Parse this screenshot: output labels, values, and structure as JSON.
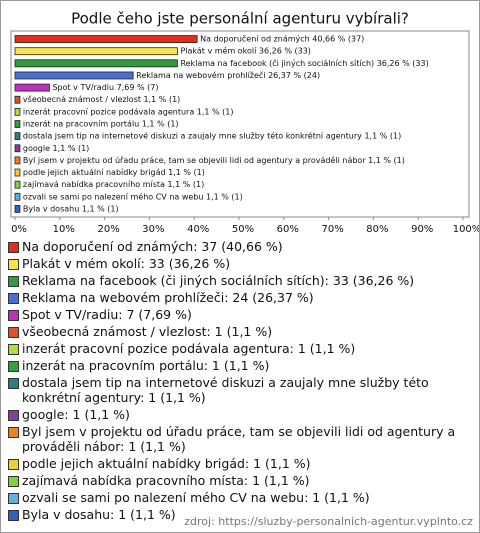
{
  "chart_data": {
    "type": "bar",
    "orientation": "horizontal",
    "title": "Podle čeho jste personální agenturu vybírali?",
    "categories": [
      "Na doporučení od známých",
      "Plakát v mém okolí",
      "Reklama na facebook (či jiných sociálních sítích)",
      "Reklama na webovém prohlížeči",
      "Spot v TV/radiu",
      "všeobecná známost / vlezlost",
      "inzerát pracovní pozice podávala agentura",
      "inzerát na pracovním portálu",
      "dostala jsem tip na internetové diskuzi a zaujaly mne služby této konkrétní agentury",
      "google",
      "Byl jsem v projektu od úřadu práce, tam se objevili lidi od agentury a prováděli nábor",
      "podle jejich aktuální nabídky brigád",
      "zajímavá nabídka pracovního místa",
      "ozvali se sami po nalezení mého CV na webu",
      "Byla v dosahu"
    ],
    "values": [
      40.66,
      36.26,
      36.26,
      26.37,
      7.69,
      1.1,
      1.1,
      1.1,
      1.1,
      1.1,
      1.1,
      1.1,
      1.1,
      1.1,
      1.1
    ],
    "value_labels": [
      "Na doporučení od známých 40,66 % (37)",
      "Plakát v mém okolí 36,26 % (33)",
      "Reklama na facebook (či jiných sociálních sítích) 36,26 % (33)",
      "Reklama na webovém prohlížeči 26,37 % (24)",
      "Spot v TV/radiu 7,69 % (7)",
      "všeobecná známost / vlezlost 1,1 % (1)",
      "inzerát pracovní pozice podávala agentura 1,1 % (1)",
      "inzerát na pracovním portálu 1,1 % (1)",
      "dostala jsem tip na internetové diskuzi a zaujaly mne služby této konkrétní agentury 1,1 % (1)",
      "google 1,1 % (1)",
      "Byl jsem v projektu od úřadu práce, tam se objevili lidi od agentury a prováděli nábor 1,1 % (1)",
      "podle jejich aktuální nabídky brigád 1,1 % (1)",
      "zajímavá nabídka pracovního místa 1,1 % (1)",
      "ozvali se sami po nalezení mého CV na webu 1,1 % (1)",
      "Byla v dosahu 1,1 % (1)"
    ],
    "legend_labels": [
      "Na doporučení od známých: 37 (40,66 %)",
      "Plakát v mém okolí: 33 (36,26 %)",
      "Reklama na facebook (či jiných sociálních sítích): 33 (36,26 %)",
      "Reklama na webovém prohlížeči: 24 (26,37 %)",
      "Spot v TV/radiu: 7 (7,69 %)",
      "všeobecná známost / vlezlost: 1 (1,1 %)",
      "inzerát pracovní pozice podávala agentura: 1 (1,1 %)",
      "inzerát na pracovním portálu: 1 (1,1 %)",
      "dostala jsem tip na internetové diskuzi a zaujaly mne služby této konkrétní agentury: 1 (1,1 %)",
      "google: 1 (1,1 %)",
      "Byl jsem v projektu od úřadu práce, tam se objevili lidi od agentury a prováděli nábor: 1 (1,1 %)",
      "podle jejich aktuální nabídky brigád: 1 (1,1 %)",
      "zajímavá nabídka pracovního místa: 1 (1,1 %)",
      "ozvali se sami po nalezení mého CV na webu: 1 (1,1 %)",
      "Byla v dosahu: 1 (1,1 %)"
    ],
    "colors": [
      "#e0301a",
      "#f4e64a",
      "#2e9e3a",
      "#4a6fd0",
      "#c030c0",
      "#e0502a",
      "#b8d840",
      "#30a040",
      "#2a8080",
      "#8040a0",
      "#f08020",
      "#f0d030",
      "#80d040",
      "#60b0e0",
      "#3060c0"
    ],
    "xlim": [
      0,
      100
    ],
    "xticks": [
      {
        "value": 0,
        "label": "0%"
      },
      {
        "value": 10,
        "label": "10%"
      },
      {
        "value": 20,
        "label": "20%"
      },
      {
        "value": 30,
        "label": "30%"
      },
      {
        "value": 40,
        "label": "40%"
      },
      {
        "value": 50,
        "label": "50%"
      },
      {
        "value": 60,
        "label": "60%"
      },
      {
        "value": 70,
        "label": "70%"
      },
      {
        "value": 80,
        "label": "80%"
      },
      {
        "value": 90,
        "label": "90%"
      },
      {
        "value": 100,
        "label": "100%"
      }
    ],
    "source": "zdroj: https://sluzby-personalnich-agentur.vyplnto.cz"
  }
}
